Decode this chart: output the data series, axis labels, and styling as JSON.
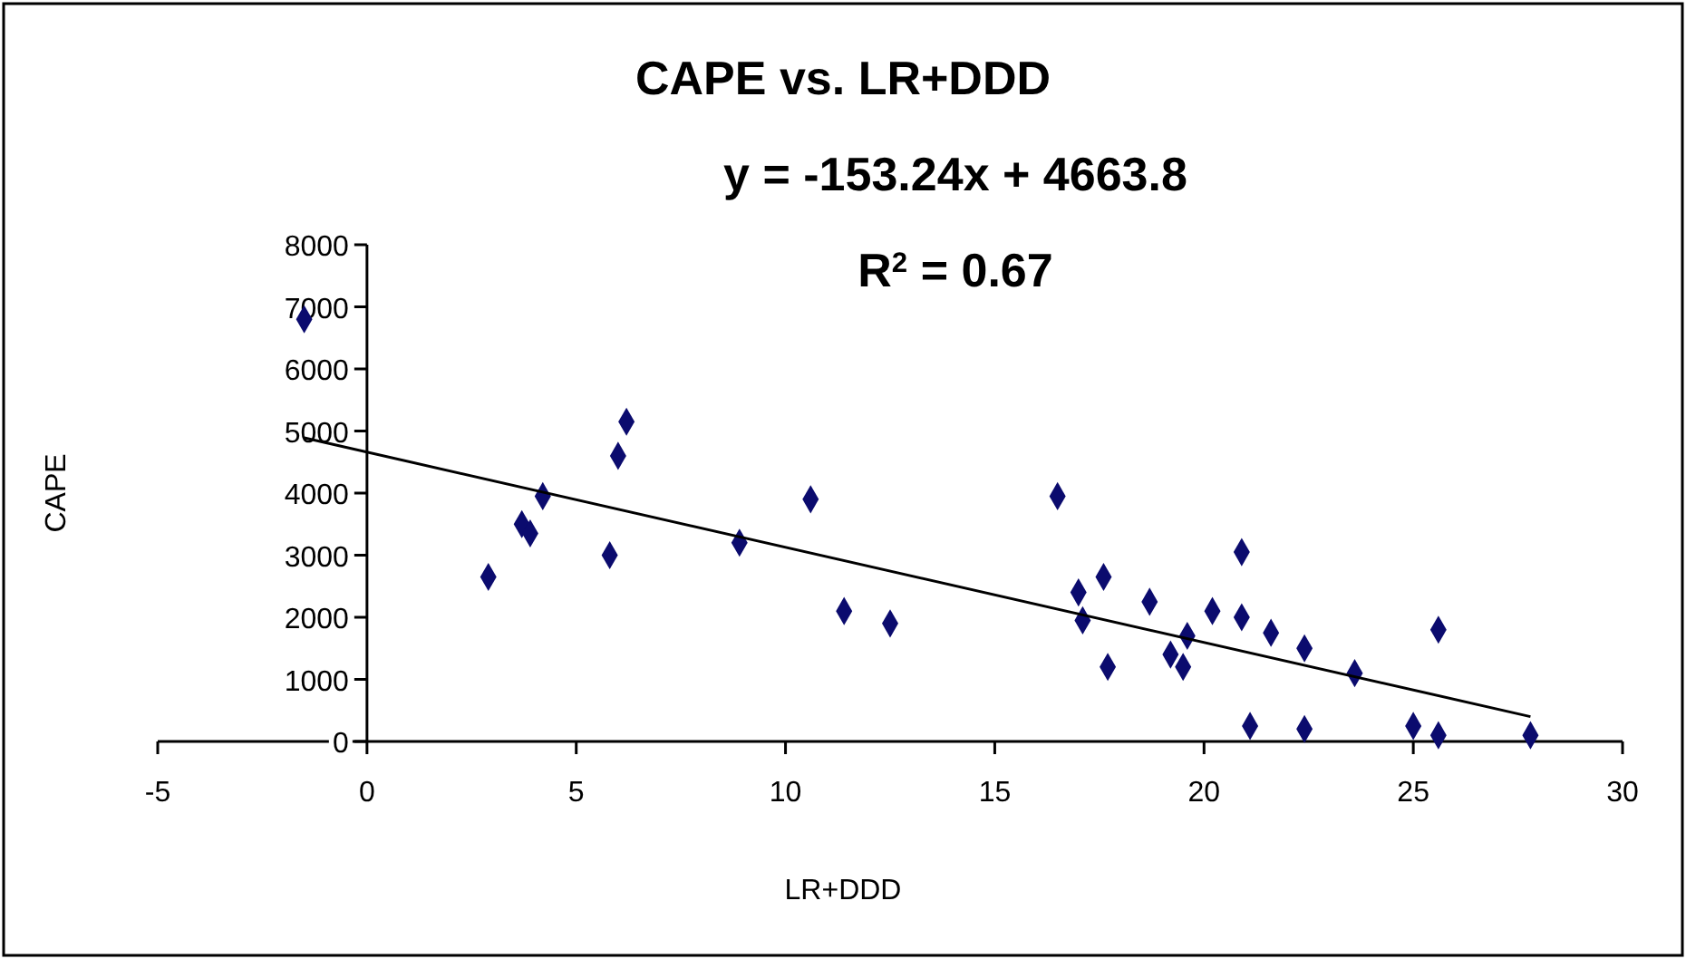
{
  "chart_data": {
    "type": "scatter",
    "title": "CAPE vs. LR+DDD",
    "xlabel": "LR+DDD",
    "ylabel": "CAPE",
    "annotations": [
      "y = -153.24x + 4663.8",
      "R$^{2}$ = 0.67"
    ],
    "xlim": [
      -5,
      30
    ],
    "xticks": [
      -5,
      0,
      5,
      10,
      15,
      20,
      25,
      30
    ],
    "ylim": [
      0,
      8000
    ],
    "yticks": [
      0,
      1000,
      2000,
      3000,
      4000,
      5000,
      6000,
      7000,
      8000
    ],
    "marker": "diamond",
    "series": [
      {
        "color": "#0b0b6e",
        "x": [
          -1.5,
          6.2,
          6.0,
          4.2,
          3.7,
          3.9,
          2.9,
          5.8,
          10.6,
          8.9,
          11.4,
          12.5,
          16.5,
          17.6,
          17.0,
          17.1,
          17.7,
          18.7,
          19.2,
          19.5,
          19.6,
          20.2,
          20.9,
          20.9,
          21.6,
          22.4,
          23.6,
          25.6,
          21.1,
          22.4,
          25.0,
          25.6,
          27.8
        ],
        "values": [
          6800,
          5150,
          4600,
          3950,
          3500,
          3350,
          2650,
          3000,
          3900,
          3200,
          2100,
          1900,
          3950,
          2650,
          2400,
          1950,
          1200,
          2250,
          1400,
          1200,
          1700,
          2100,
          3050,
          2000,
          1750,
          1500,
          1100,
          1800,
          250,
          200,
          250,
          100,
          100
        ]
      },
      {
        "type": "line",
        "color": "#000000",
        "x": [
          -1.5,
          27.8
        ],
        "values": [
          4890,
          400
        ],
        "marker": "none"
      }
    ]
  }
}
